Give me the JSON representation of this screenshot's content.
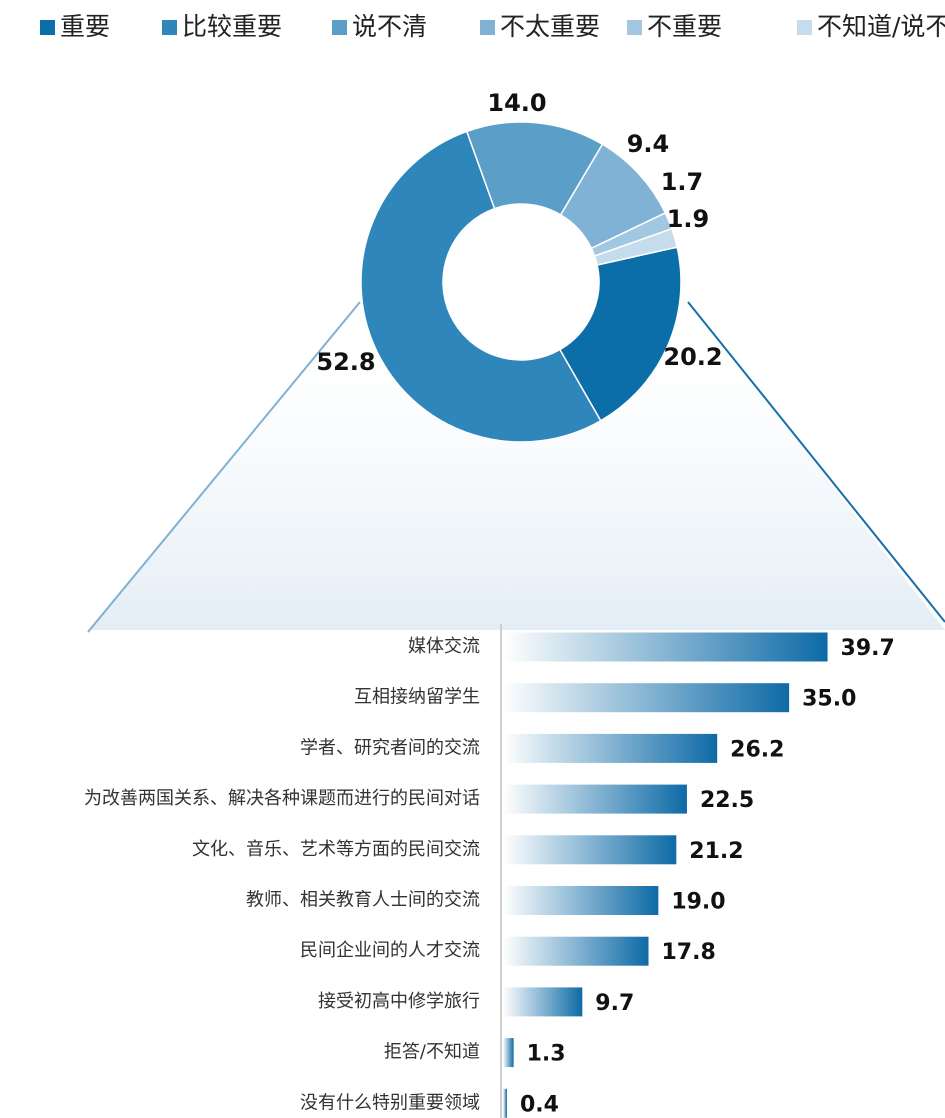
{
  "chart_data": [
    {
      "type": "pie",
      "style": "donut",
      "legend_position": "top",
      "slices": [
        {
          "name": "重要",
          "value": 20.2,
          "color": "#0c6ea8"
        },
        {
          "name": "比较重要",
          "value": 52.8,
          "color": "#2e86bb"
        },
        {
          "name": "说不清",
          "value": 14.0,
          "color": "#5b9ec8"
        },
        {
          "name": "不太重要",
          "value": 9.4,
          "color": "#7fb2d4"
        },
        {
          "name": "不重要",
          "value": 1.7,
          "color": "#a2c7e0"
        },
        {
          "name": "不知道/说不清",
          "value": 1.9,
          "color": "#c5dcec"
        }
      ]
    },
    {
      "type": "bar",
      "orientation": "horizontal",
      "categories": [
        "媒体交流",
        "互相接纳留学生",
        "学者、研究者间的交流",
        "为改善两国关系、解决各种课题而进行的民间对话",
        "文化、音乐、艺术等方面的民间交流",
        "教师、相关教育人士间的交流",
        "民间企业间的人才交流",
        "接受初高中修学旅行",
        "拒答/不知道",
        "没有什么特别重要领域"
      ],
      "values": [
        39.7,
        35.0,
        26.2,
        22.5,
        21.2,
        19.0,
        17.8,
        9.7,
        1.3,
        0.4
      ],
      "xlim": [
        0,
        40
      ],
      "bar_color_start": "#ffffff",
      "bar_color_end": "#0d6aa6"
    }
  ]
}
